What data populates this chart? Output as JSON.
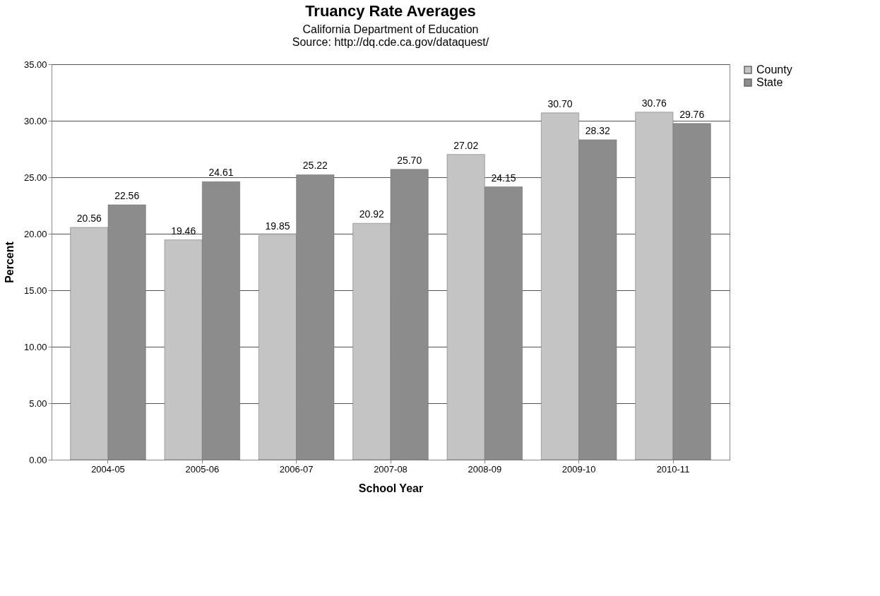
{
  "chart_data": {
    "type": "bar",
    "title": "Truancy Rate Averages",
    "subtitle": "California Department of Education",
    "annotations": [
      "Source: http://dq.cde.ca.gov/dataquest/"
    ],
    "xlabel": "School Year",
    "ylabel": "Percent",
    "categories": [
      "2004-05",
      "2005-06",
      "2006-07",
      "2007-08",
      "2008-09",
      "2009-10",
      "2010-11"
    ],
    "series": [
      {
        "name": "County",
        "color": "#c4c4c4",
        "values": [
          20.56,
          19.46,
          19.85,
          20.92,
          27.02,
          30.7,
          30.76
        ],
        "value_labels": [
          "20.56",
          "19.46",
          "19.85",
          "20.92",
          "27.02",
          "30.70",
          "30.76"
        ]
      },
      {
        "name": "State",
        "color": "#8c8c8c",
        "values": [
          22.56,
          24.61,
          25.22,
          25.7,
          24.15,
          28.32,
          29.76
        ],
        "value_labels": [
          "22.56",
          "24.61",
          "25.22",
          "25.70",
          "24.15",
          "28.32",
          "29.76"
        ]
      }
    ],
    "ylim": [
      0,
      35
    ],
    "yticks": [
      {
        "value": 0,
        "label": "0.00"
      },
      {
        "value": 5,
        "label": "5.00"
      },
      {
        "value": 10,
        "label": "10.00"
      },
      {
        "value": 15,
        "label": "15.00"
      },
      {
        "value": 20,
        "label": "20.00"
      },
      {
        "value": 25,
        "label": "25.00"
      },
      {
        "value": 30,
        "label": "30.00"
      },
      {
        "value": 35,
        "label": "35.00"
      }
    ],
    "grid": "y",
    "legend": "right"
  }
}
